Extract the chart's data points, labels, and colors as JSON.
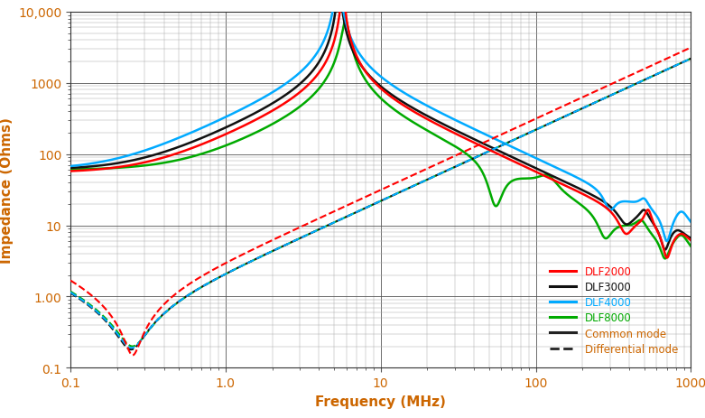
{
  "xlabel": "Frequency (MHz)",
  "ylabel": "Impedance (Ohms)",
  "xlim": [
    0.1,
    1000
  ],
  "ylim": [
    0.1,
    10000
  ],
  "colors": {
    "DLF2000": "#ff0000",
    "DLF3000": "#111111",
    "DLF4000": "#00aaff",
    "DLF8000": "#00aa00"
  },
  "bg_color": "#ffffff",
  "label_fontsize": 11,
  "tick_color": "#cc6600",
  "grid_major_color": "#555555",
  "grid_minor_color": "#aaaaaa"
}
